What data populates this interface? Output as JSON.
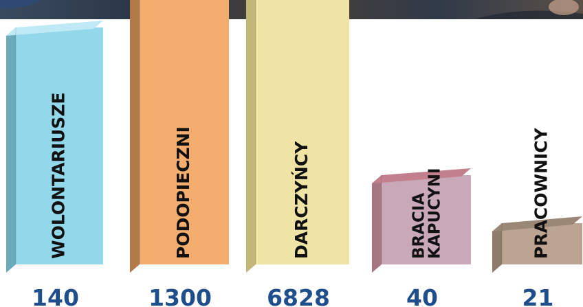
{
  "chart_data": {
    "type": "bar",
    "style": "3d-columns",
    "categories": [
      "WOLONTARIUSZE",
      "PODOPIECZNI",
      "DARCZYŃCY",
      "BRACIA KAPUCYNI",
      "PRACOWNICY"
    ],
    "values": [
      140,
      1300,
      6828,
      40,
      21
    ],
    "value_labels": [
      "140",
      "1300",
      "6828",
      "40",
      "21"
    ],
    "colors": [
      {
        "front": "#93d7ea",
        "side": "#6aaabb",
        "top": "#bfe9f4"
      },
      {
        "front": "#f3ad6f",
        "side": "#b27a49",
        "top": "#f8c99c"
      },
      {
        "front": "#efe4a6",
        "side": "#c2b678",
        "top": "#f6efcb"
      },
      {
        "front": "#c9a9b8",
        "side": "#a67783",
        "top": "#c27f8c"
      },
      {
        "front": "#bba592",
        "side": "#8e7b69",
        "top": "#9a8775"
      }
    ],
    "value_label_color": "#1f4e8c",
    "scale": "non-proportional"
  }
}
